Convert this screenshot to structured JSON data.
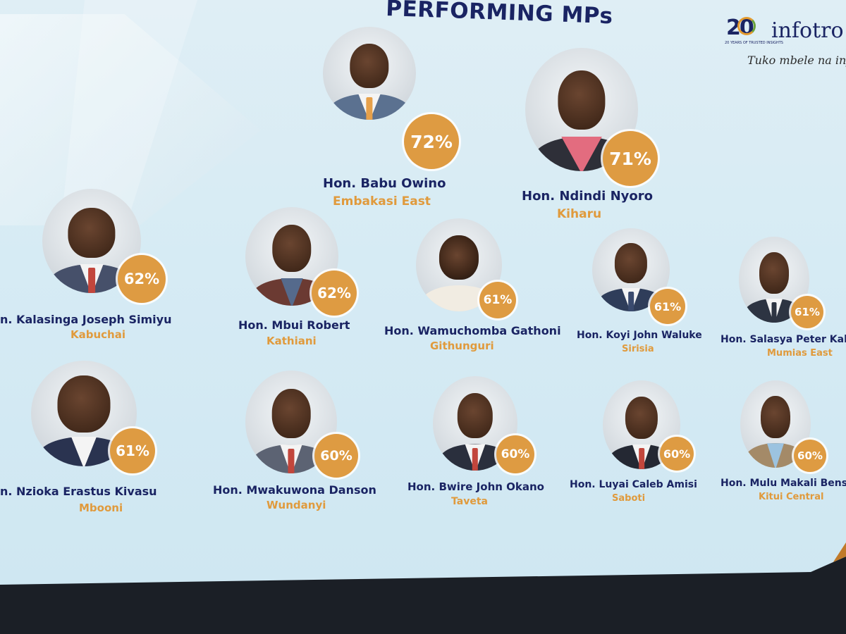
{
  "slide": {
    "title": "PERFORMING MPs"
  },
  "logo": {
    "number": "20",
    "word": "infotro",
    "tiny": "20 YEARS OF TRUSTED INSIGHTS",
    "tagline": "Tuko mbele na info"
  },
  "mps": [
    {
      "name": "Hon. Babu Owino",
      "constituency": "Embakasi East",
      "score": "72%"
    },
    {
      "name": "Hon. Ndindi Nyoro",
      "constituency": "Kiharu",
      "score": "71%"
    },
    {
      "name": "n. Kalasinga Joseph Simiyu",
      "constituency": "Kabuchai",
      "score": "62%"
    },
    {
      "name": "Hon. Mbui Robert",
      "constituency": "Kathiani",
      "score": "62%"
    },
    {
      "name": "Hon. Wamuchomba Gathoni",
      "constituency": "Githunguri",
      "score": "61%"
    },
    {
      "name": "Hon. Koyi John Waluke",
      "constituency": "Sirisia",
      "score": "61%"
    },
    {
      "name": "Hon. Salasya Peter Kalerv",
      "constituency": "Mumias East",
      "score": "61%"
    },
    {
      "name": "n. Nzioka Erastus Kivasu",
      "constituency": "Mbooni",
      "score": "61%"
    },
    {
      "name": "Hon. Mwakuwona Danson",
      "constituency": "Wundanyi",
      "score": "60%"
    },
    {
      "name": "Hon. Bwire John Okano",
      "constituency": "Taveta",
      "score": "60%"
    },
    {
      "name": "Hon. Luyai Caleb Amisi",
      "constituency": "Saboti",
      "score": "60%"
    },
    {
      "name": "Hon. Mulu Makali Benson",
      "constituency": "Kitui Central",
      "score": "60%"
    }
  ],
  "colors": {
    "navy": "#1a2463",
    "orange": "#e09a3c",
    "badge": "#de9b42",
    "background": "#d6ebf4"
  }
}
